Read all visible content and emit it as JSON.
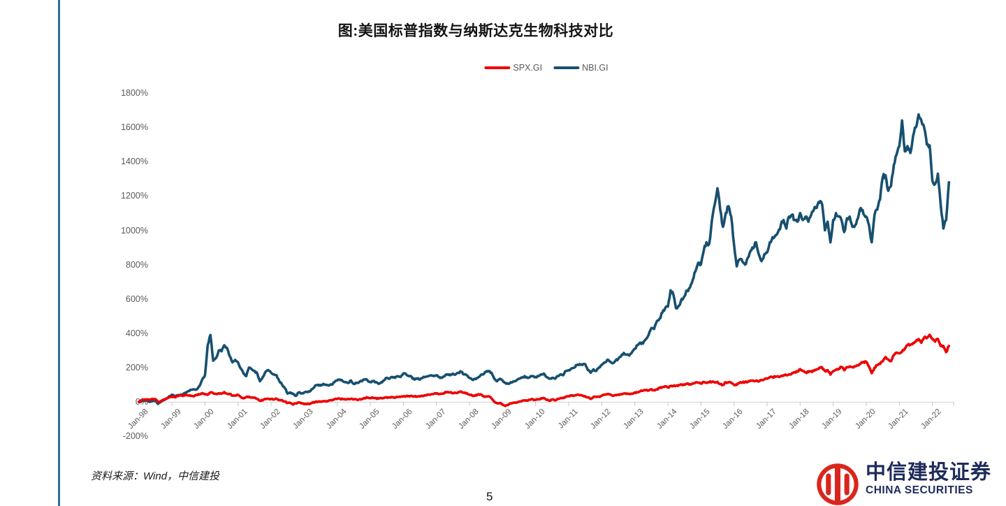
{
  "page": {
    "source_note": "资料来源：Wind，中信建投",
    "page_number": "5"
  },
  "logo": {
    "cn": "中信建投证券",
    "en": "CHINA SECURITIES"
  },
  "colors": {
    "left_rule": "#2e6d9e",
    "spx_red": "#ee0000",
    "nbi_blue": "#175070",
    "axis_line": "#d9d9d9",
    "axis_tick": "#c6c6c6",
    "axis_text": "#595959",
    "logo_red": "#da251d",
    "logo_navy": "#1e2a5a"
  },
  "chart_data": {
    "type": "line",
    "title": "图:美国标普指数与纳斯达克生物科技对比",
    "unit": "%",
    "grid": false,
    "legend_position": "top-center",
    "ylim": [
      -200,
      1800
    ],
    "y_ticks": [
      "1800%",
      "1600%",
      "1400%",
      "1200%",
      "1000%",
      "800%",
      "600%",
      "400%",
      "200%",
      "0%",
      "-200%"
    ],
    "x_ticks": [
      "Jan-98",
      "Jan-99",
      "Jan-00",
      "Jan-01",
      "Jan-02",
      "Jan-03",
      "Jan-04",
      "Jan-05",
      "Jan-06",
      "Jan-07",
      "Jan-08",
      "Jan-09",
      "Jan-10",
      "Jan-11",
      "Jan-12",
      "Jan-13",
      "Jan-14",
      "Jan-15",
      "Jan-16",
      "Jan-17",
      "Jan-18",
      "Jan-19",
      "Jan-20",
      "Jan-21",
      "Jan-22"
    ],
    "x_start": "Jan-98",
    "x_end": "Jul-22",
    "frequency": "monthly",
    "series": [
      {
        "name": "SPX.GI",
        "color": "#ee0000",
        "values": [
          0,
          8,
          14,
          15,
          12,
          17,
          16,
          -1,
          5,
          13,
          20,
          27,
          32,
          28,
          33,
          38,
          34,
          42,
          37,
          36,
          32,
          41,
          43,
          51,
          44,
          41,
          55,
          50,
          47,
          50,
          48,
          57,
          48,
          47,
          36,
          36,
          41,
          28,
          20,
          29,
          30,
          26,
          25,
          17,
          7,
          9,
          17,
          18,
          17,
          14,
          18,
          11,
          10,
          2,
          -6,
          -6,
          -16,
          -9,
          -3,
          -9,
          -12,
          -13,
          -13,
          -5,
          -1,
          1,
          2,
          4,
          3,
          8,
          9,
          15,
          17,
          18,
          16,
          14,
          16,
          18,
          14,
          14,
          15,
          17,
          21,
          25,
          22,
          24,
          22,
          19,
          23,
          23,
          27,
          26,
          27,
          24,
          29,
          29,
          32,
          32,
          34,
          35,
          31,
          31,
          32,
          34,
          38,
          42,
          44,
          46,
          48,
          45,
          47,
          53,
          58,
          55,
          50,
          52,
          57,
          60,
          53,
          51,
          42,
          37,
          36,
          43,
          44,
          32,
          31,
          32,
          20,
          0,
          -8,
          -7,
          -15,
          -24,
          -18,
          -10,
          -5,
          -5,
          2,
          5,
          9,
          7,
          13,
          15,
          11,
          14,
          21,
          22,
          12,
          6,
          14,
          8,
          18,
          22,
          22,
          30,
          33,
          37,
          37,
          41,
          39,
          36,
          33,
          26,
          17,
          29,
          29,
          30,
          35,
          41,
          45,
          44,
          35,
          40,
          42,
          45,
          49,
          46,
          46,
          47,
          55,
          56,
          62,
          65,
          68,
          66,
          74,
          68,
          73,
          81,
          86,
          91,
          84,
          92,
          93,
          94,
          98,
          102,
          99,
          107,
          103,
          108,
          113,
          112,
          106,
          117,
          113,
          115,
          117,
          113,
          117,
          103,
          98,
          114,
          114,
          111,
          100,
          99,
          112,
          113,
          116,
          116,
          124,
          124,
          124,
          119,
          127,
          131,
          135,
          144,
          144,
          146,
          149,
          150,
          155,
          155,
          160,
          166,
          173,
          176,
          191,
          180,
          172,
          173,
          179,
          180,
          190,
          199,
          200,
          180,
          185,
          159,
          179,
          187,
          192,
          204,
          184,
          203,
          207,
          202,
          207,
          213,
          224,
          233,
          233,
          205,
          167,
          200,
          214,
          220,
          237,
          261,
          247,
          237,
          273,
          287,
          283,
          293,
          310,
          331,
          333,
          343,
          353,
          366,
          344,
          375,
          371,
          391,
          366,
          351,
          367,
          326,
          326,
          290,
          326
        ]
      },
      {
        "name": "NBI.GI",
        "color": "#175070",
        "values": [
          0,
          4,
          7,
          6,
          0,
          5,
          8,
          -12,
          2,
          9,
          18,
          32,
          42,
          33,
          38,
          40,
          43,
          55,
          62,
          70,
          72,
          73,
          92,
          130,
          155,
          330,
          390,
          240,
          255,
          300,
          295,
          330,
          315,
          265,
          230,
          245,
          230,
          195,
          165,
          150,
          200,
          190,
          180,
          165,
          120,
          145,
          175,
          185,
          170,
          160,
          155,
          120,
          100,
          80,
          48,
          55,
          45,
          35,
          55,
          50,
          55,
          58,
          60,
          75,
          95,
          100,
          95,
          105,
          100,
          95,
          100,
          115,
          125,
          130,
          120,
          115,
          110,
          125,
          105,
          110,
          115,
          120,
          130,
          125,
          115,
          120,
          115,
          105,
          115,
          125,
          140,
          135,
          145,
          140,
          150,
          145,
          165,
          160,
          150,
          145,
          130,
          135,
          130,
          140,
          145,
          150,
          155,
          150,
          155,
          145,
          140,
          150,
          160,
          155,
          165,
          160,
          170,
          175,
          160,
          155,
          140,
          130,
          135,
          140,
          155,
          160,
          175,
          180,
          170,
          135,
          120,
          135,
          125,
          110,
          105,
          115,
          120,
          125,
          135,
          140,
          150,
          140,
          145,
          150,
          145,
          150,
          160,
          165,
          145,
          135,
          140,
          135,
          150,
          160,
          155,
          180,
          185,
          195,
          200,
          215,
          220,
          215,
          220,
          185,
          170,
          190,
          180,
          200,
          215,
          230,
          245,
          235,
          225,
          240,
          250,
          265,
          285,
          275,
          270,
          290,
          310,
          330,
          345,
          340,
          365,
          390,
          430,
          425,
          470,
          485,
          520,
          545,
          555,
          650,
          625,
          545,
          560,
          600,
          615,
          650,
          665,
          710,
          760,
          810,
          800,
          880,
          930,
          920,
          1060,
          1150,
          1245,
          1120,
          1020,
          1100,
          1140,
          1080,
          920,
          790,
          830,
          820,
          800,
          840,
          880,
          895,
          930,
          860,
          820,
          860,
          870,
          930,
          960,
          970,
          990,
          1030,
          1060,
          1010,
          1080,
          1090,
          1060,
          1050,
          1100,
          1060,
          1080,
          1050,
          1090,
          1120,
          1130,
          1160,
          1150,
          1000,
          1050,
          930,
          1060,
          1100,
          1080,
          1060,
          990,
          1070,
          1080,
          1020,
          1030,
          1070,
          1130,
          1095,
          1080,
          1030,
          930,
          1090,
          1120,
          1180,
          1310,
          1320,
          1230,
          1260,
          1380,
          1440,
          1490,
          1640,
          1460,
          1490,
          1450,
          1550,
          1600,
          1675,
          1640,
          1600,
          1500,
          1495,
          1290,
          1270,
          1330,
          1150,
          1010,
          1060,
          1280
        ]
      }
    ]
  }
}
